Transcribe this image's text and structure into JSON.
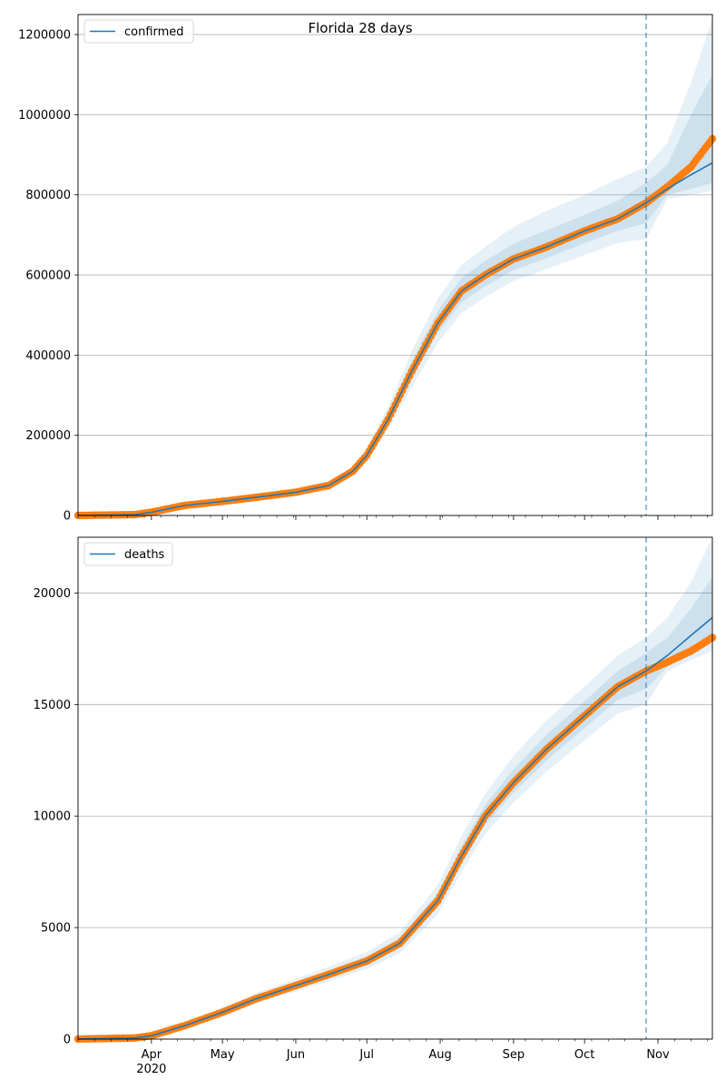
{
  "title": "Florida 28 days",
  "colors": {
    "model": "#1f77b4",
    "observed": "#ff7f0e",
    "band": "#1f77b4",
    "grid": "#b0b0b0",
    "cutoff": "#1f77b4"
  },
  "x_axis": {
    "start": "2020-03-01",
    "end": "2020-11-24",
    "month_labels": [
      "Apr",
      "May",
      "Jun",
      "Jul",
      "Aug",
      "Sep",
      "Oct",
      "Nov"
    ],
    "month_dates": [
      "2020-04-01",
      "2020-05-01",
      "2020-06-01",
      "2020-07-01",
      "2020-08-01",
      "2020-09-01",
      "2020-10-01",
      "2020-11-01"
    ],
    "year_label": "2020",
    "cutoff_date": "2020-10-27"
  },
  "chart_data": [
    {
      "type": "line",
      "legend": "confirmed",
      "legend_position": "top-left",
      "grid": "y",
      "ylim": [
        0,
        1250000
      ],
      "yticks": [
        0,
        200000,
        400000,
        600000,
        800000,
        1000000,
        1200000
      ],
      "ytick_labels": [
        "0",
        "200000",
        "400000",
        "600000",
        "800000",
        "1000000",
        "1200000"
      ],
      "observed": {
        "x": [
          "2020-03-01",
          "2020-03-25",
          "2020-04-01",
          "2020-04-15",
          "2020-05-01",
          "2020-05-15",
          "2020-06-01",
          "2020-06-15",
          "2020-06-25",
          "2020-07-01",
          "2020-07-10",
          "2020-07-20",
          "2020-07-31",
          "2020-08-10",
          "2020-08-20",
          "2020-09-01",
          "2020-09-15",
          "2020-10-01",
          "2020-10-15",
          "2020-10-27",
          "2020-11-05",
          "2020-11-15",
          "2020-11-24"
        ],
        "y": [
          0,
          2000,
          8000,
          25000,
          35000,
          45000,
          58000,
          75000,
          110000,
          150000,
          240000,
          360000,
          480000,
          560000,
          600000,
          640000,
          670000,
          710000,
          740000,
          780000,
          820000,
          870000,
          940000
        ]
      },
      "model": {
        "x": [
          "2020-03-01",
          "2020-03-25",
          "2020-04-01",
          "2020-04-15",
          "2020-05-01",
          "2020-05-15",
          "2020-06-01",
          "2020-06-15",
          "2020-06-25",
          "2020-07-01",
          "2020-07-10",
          "2020-07-20",
          "2020-07-31",
          "2020-08-10",
          "2020-08-20",
          "2020-09-01",
          "2020-09-15",
          "2020-10-01",
          "2020-10-15",
          "2020-10-27",
          "2020-11-05",
          "2020-11-15",
          "2020-11-24"
        ],
        "y": [
          0,
          2000,
          8000,
          25000,
          35000,
          45000,
          58000,
          75000,
          110000,
          150000,
          240000,
          360000,
          480000,
          560000,
          600000,
          640000,
          670000,
          710000,
          740000,
          780000,
          815000,
          850000,
          880000
        ]
      },
      "bands": [
        {
          "lower": [
            0,
            1500,
            7000,
            22000,
            31000,
            40000,
            52000,
            68000,
            100000,
            135000,
            215000,
            320000,
            430000,
            505000,
            545000,
            585000,
            615000,
            650000,
            680000,
            690000,
            790000,
            800000,
            810000
          ],
          "upper": [
            0,
            2500,
            9000,
            28000,
            39000,
            50000,
            64000,
            82000,
            120000,
            170000,
            270000,
            410000,
            540000,
            625000,
            670000,
            720000,
            760000,
            800000,
            840000,
            870000,
            930000,
            1080000,
            1240000
          ]
        },
        {
          "lower": [
            0,
            1700,
            7400,
            23500,
            33000,
            42500,
            55000,
            71500,
            105000,
            142000,
            227000,
            340000,
            455000,
            532000,
            572000,
            612000,
            642000,
            680000,
            710000,
            730000,
            800000,
            815000,
            830000
          ],
          "upper": [
            0,
            2300,
            8600,
            26500,
            37000,
            47500,
            61000,
            78500,
            115000,
            160000,
            255000,
            385000,
            510000,
            593000,
            635000,
            678000,
            712000,
            750000,
            785000,
            830000,
            875000,
            1000000,
            1100000
          ]
        }
      ]
    },
    {
      "type": "line",
      "legend": "deaths",
      "legend_position": "top-left",
      "grid": "y",
      "ylim": [
        0,
        22500
      ],
      "yticks": [
        0,
        5000,
        10000,
        15000,
        20000
      ],
      "ytick_labels": [
        "0",
        "5000",
        "10000",
        "15000",
        "20000"
      ],
      "observed": {
        "x": [
          "2020-03-01",
          "2020-03-25",
          "2020-04-01",
          "2020-04-15",
          "2020-05-01",
          "2020-05-15",
          "2020-06-01",
          "2020-06-15",
          "2020-07-01",
          "2020-07-15",
          "2020-07-31",
          "2020-08-10",
          "2020-08-20",
          "2020-09-01",
          "2020-09-15",
          "2020-10-01",
          "2020-10-15",
          "2020-10-27",
          "2020-11-05",
          "2020-11-15",
          "2020-11-24"
        ],
        "y": [
          0,
          50,
          150,
          600,
          1200,
          1800,
          2400,
          2900,
          3500,
          4300,
          6200,
          8200,
          10000,
          11500,
          13000,
          14500,
          15800,
          16500,
          16900,
          17400,
          18000
        ]
      },
      "model": {
        "x": [
          "2020-03-01",
          "2020-03-25",
          "2020-04-01",
          "2020-04-15",
          "2020-05-01",
          "2020-05-15",
          "2020-06-01",
          "2020-06-15",
          "2020-07-01",
          "2020-07-15",
          "2020-07-31",
          "2020-08-10",
          "2020-08-20",
          "2020-09-01",
          "2020-09-15",
          "2020-10-01",
          "2020-10-15",
          "2020-10-27",
          "2020-11-05",
          "2020-11-15",
          "2020-11-24"
        ],
        "y": [
          0,
          50,
          150,
          600,
          1200,
          1800,
          2400,
          2900,
          3500,
          4300,
          6200,
          8200,
          10000,
          11500,
          13000,
          14500,
          15800,
          16500,
          17200,
          18100,
          18900
        ]
      },
      "bands": [
        {
          "lower": [
            0,
            40,
            120,
            500,
            1050,
            1600,
            2150,
            2600,
            3150,
            3850,
            5600,
            7500,
            9200,
            10600,
            12000,
            13400,
            14600,
            15000,
            16500,
            17000,
            17400
          ],
          "upper": [
            0,
            60,
            180,
            700,
            1400,
            2050,
            2700,
            3250,
            3900,
            4800,
            6900,
            9100,
            11000,
            12700,
            14300,
            15800,
            17200,
            18000,
            18900,
            20500,
            22500
          ]
        },
        {
          "lower": [
            0,
            45,
            135,
            550,
            1120,
            1700,
            2270,
            2750,
            3320,
            4070,
            5900,
            7850,
            9600,
            11050,
            12500,
            13950,
            15200,
            15700,
            16700,
            17400,
            17900
          ],
          "upper": [
            0,
            55,
            165,
            650,
            1300,
            1920,
            2550,
            3070,
            3700,
            4550,
            6550,
            8650,
            10500,
            12100,
            13650,
            15150,
            16500,
            17300,
            18000,
            19300,
            20700
          ]
        }
      ]
    }
  ]
}
